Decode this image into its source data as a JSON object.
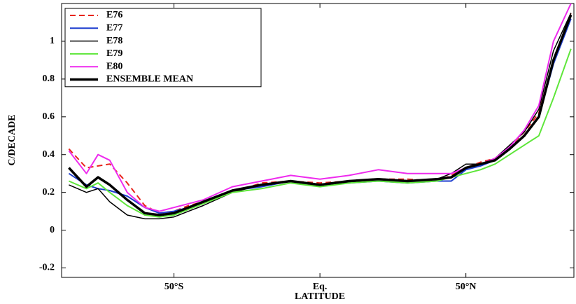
{
  "chart_data": {
    "type": "line",
    "xlabel": "LATITUDE",
    "ylabel": "C/DECADE",
    "x": [
      -86,
      -80,
      -76,
      -72,
      -66,
      -60,
      -55,
      -50,
      -45,
      -40,
      -30,
      -20,
      -10,
      0,
      10,
      20,
      30,
      40,
      45,
      50,
      55,
      60,
      65,
      70,
      75,
      80,
      86
    ],
    "xlim": [
      -88.5,
      87
    ],
    "xticks": [
      {
        "value": -50,
        "label": "50°S"
      },
      {
        "value": 0,
        "label": "Eq."
      },
      {
        "value": 50,
        "label": "50°N"
      }
    ],
    "ylim": [
      -0.25,
      1.2
    ],
    "yticks": [
      -0.2,
      0,
      0.2,
      0.4,
      0.6,
      0.8,
      1
    ],
    "grid": false,
    "legend": "upper left",
    "series": [
      {
        "name": "E76",
        "color": "#e8241c",
        "linestyle": "dashed",
        "linewidth": 2,
        "values": [
          0.43,
          0.33,
          0.34,
          0.35,
          0.25,
          0.13,
          0.09,
          0.1,
          0.13,
          0.15,
          0.2,
          0.25,
          0.26,
          0.25,
          0.26,
          0.27,
          0.27,
          0.26,
          0.29,
          0.33,
          0.36,
          0.38,
          0.44,
          0.52,
          0.62,
          0.9,
          1.15
        ]
      },
      {
        "name": "E77",
        "color": "#1f3fcf",
        "linestyle": "solid",
        "linewidth": 2,
        "values": [
          0.3,
          0.24,
          0.22,
          0.21,
          0.18,
          0.12,
          0.09,
          0.1,
          0.12,
          0.15,
          0.21,
          0.23,
          0.26,
          0.24,
          0.25,
          0.26,
          0.25,
          0.26,
          0.26,
          0.32,
          0.34,
          0.37,
          0.43,
          0.5,
          0.6,
          0.88,
          1.12
        ]
      },
      {
        "name": "E78",
        "color": "#000000",
        "linestyle": "solid",
        "linewidth": 1.5,
        "values": [
          0.24,
          0.2,
          0.22,
          0.15,
          0.08,
          0.06,
          0.06,
          0.07,
          0.1,
          0.13,
          0.2,
          0.24,
          0.26,
          0.24,
          0.25,
          0.27,
          0.26,
          0.27,
          0.3,
          0.35,
          0.35,
          0.38,
          0.45,
          0.52,
          0.64,
          0.95,
          1.15
        ]
      },
      {
        "name": "E79",
        "color": "#5ee63a",
        "linestyle": "solid",
        "linewidth": 2,
        "values": [
          0.26,
          0.22,
          0.25,
          0.2,
          0.13,
          0.08,
          0.07,
          0.08,
          0.11,
          0.14,
          0.2,
          0.22,
          0.25,
          0.23,
          0.25,
          0.26,
          0.25,
          0.26,
          0.28,
          0.3,
          0.32,
          0.35,
          0.4,
          0.45,
          0.5,
          0.7,
          0.96
        ]
      },
      {
        "name": "E80",
        "color": "#ee2bee",
        "linestyle": "solid",
        "linewidth": 2,
        "values": [
          0.42,
          0.3,
          0.4,
          0.37,
          0.2,
          0.12,
          0.1,
          0.12,
          0.14,
          0.16,
          0.23,
          0.26,
          0.29,
          0.27,
          0.29,
          0.32,
          0.3,
          0.3,
          0.3,
          0.33,
          0.35,
          0.38,
          0.44,
          0.53,
          0.66,
          1.0,
          1.2
        ]
      },
      {
        "name": "ENSEMBLE MEAN",
        "color": "#000000",
        "linestyle": "solid",
        "linewidth": 3.5,
        "values": [
          0.33,
          0.23,
          0.28,
          0.24,
          0.16,
          0.09,
          0.08,
          0.09,
          0.12,
          0.15,
          0.21,
          0.24,
          0.26,
          0.24,
          0.26,
          0.27,
          0.26,
          0.27,
          0.28,
          0.33,
          0.35,
          0.37,
          0.43,
          0.5,
          0.6,
          0.9,
          1.14
        ]
      }
    ]
  }
}
